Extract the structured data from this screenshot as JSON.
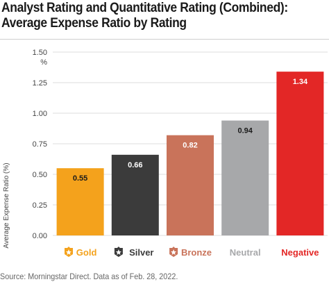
{
  "chart_data": {
    "type": "bar",
    "title": "Analyst Rating and Quantitative Rating (Combined): Average Expense Ratio by Rating",
    "ylabel": "Average Expense Ratio (%)",
    "y_unit_label": "%",
    "ylim": [
      0,
      1.5
    ],
    "yticks": [
      "0.00",
      "0.25",
      "0.50",
      "0.75",
      "1.00",
      "1.25",
      "1.50"
    ],
    "grid": true,
    "categories": [
      "Gold",
      "Silver",
      "Bronze",
      "Neutral",
      "Negative"
    ],
    "values": [
      0.55,
      0.66,
      0.82,
      0.94,
      1.34
    ],
    "value_labels": [
      "0.55",
      "0.66",
      "0.82",
      "0.94",
      "1.34"
    ],
    "colors": [
      "#f4a21c",
      "#3b3b3b",
      "#c9735a",
      "#a7a8aa",
      "#e32726"
    ],
    "label_text_colors": [
      "#1a1a1a",
      "#ffffff",
      "#ffffff",
      "#1a1a1a",
      "#ffffff"
    ],
    "category_icons": [
      "gold-medal-icon",
      "silver-medal-icon",
      "bronze-medal-icon",
      "",
      ""
    ],
    "source": "Source: Morningstar Direct. Data as of Feb. 28, 2022."
  }
}
